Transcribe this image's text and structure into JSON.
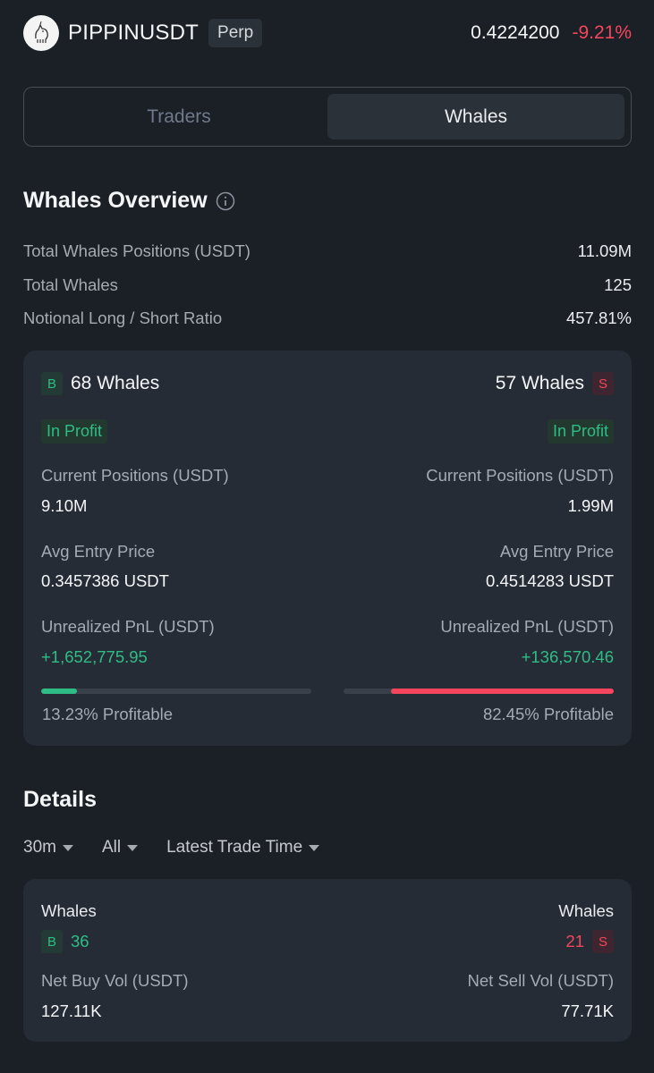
{
  "header": {
    "symbol": "PIPPINUSDT",
    "contract_type": "Perp",
    "price": "0.4224200",
    "change": "-9.21%",
    "logo_icon": "unicorn-logo-icon"
  },
  "tabs": [
    {
      "label": "Traders",
      "active": false
    },
    {
      "label": "Whales",
      "active": true
    }
  ],
  "overview": {
    "title": "Whales Overview",
    "info_icon": "info-circle-icon",
    "rows": [
      {
        "label": "Total Whales Positions (USDT)",
        "value": "11.09M"
      },
      {
        "label": "Total Whales",
        "value": "125"
      },
      {
        "label": "Notional Long / Short Ratio",
        "value": "457.81%"
      }
    ]
  },
  "long_short": {
    "long": {
      "tag": "B",
      "title": "68 Whales",
      "badge": "In Profit",
      "positions_label": "Current Positions (USDT)",
      "positions_value": "9.10M",
      "entry_label": "Avg Entry Price",
      "entry_value": "0.3457386 USDT",
      "pnl_label": "Unrealized PnL (USDT)",
      "pnl_value": "+1,652,775.95",
      "profitable_fraction": 0.1323,
      "profitable_text": "13.23% Profitable"
    },
    "short": {
      "tag": "S",
      "title": "57 Whales",
      "badge": "In Profit",
      "positions_label": "Current Positions (USDT)",
      "positions_value": "1.99M",
      "entry_label": "Avg Entry Price",
      "entry_value": "0.4514283 USDT",
      "pnl_label": "Unrealized PnL (USDT)",
      "pnl_value": "+136,570.46",
      "profitable_fraction": 0.8245,
      "profitable_text": "82.45% Profitable"
    }
  },
  "details": {
    "title": "Details",
    "filters": [
      "30m",
      "All",
      "Latest Trade Time"
    ],
    "card": {
      "left_label": "Whales",
      "left_tag": "B",
      "left_count": "36",
      "right_label": "Whales",
      "right_tag": "S",
      "right_count": "21",
      "buy_vol_label": "Net Buy Vol (USDT)",
      "buy_vol_value": "127.11K",
      "sell_vol_label": "Net Sell Vol (USDT)",
      "sell_vol_value": "77.71K"
    }
  },
  "colors": {
    "background": "#1b1f26",
    "card": "#262c36",
    "buy": "#2ebd85",
    "sell": "#f6465d",
    "muted": "#a5abb3"
  }
}
